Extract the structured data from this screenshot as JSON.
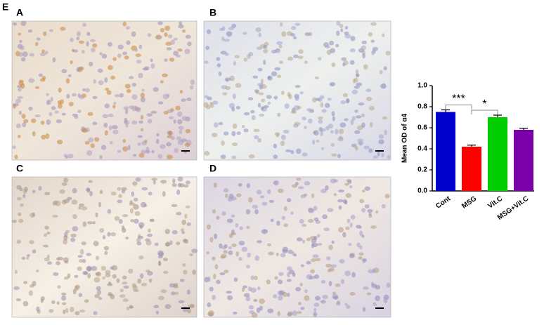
{
  "figure_label": "E",
  "panels": [
    {
      "label": "A"
    },
    {
      "label": "B"
    },
    {
      "label": "C"
    },
    {
      "label": "D"
    }
  ],
  "chart_data": {
    "type": "bar",
    "y_label": "Mean OD of α4",
    "categories": [
      "Cont",
      "MSG",
      "Vit.C",
      "MSG+Vit.C"
    ],
    "values": [
      0.75,
      0.42,
      0.7,
      0.58
    ],
    "errors": [
      0.02,
      0.015,
      0.02,
      0.015
    ],
    "colors": [
      "#0000cc",
      "#ff0000",
      "#00cc00",
      "#7a00a8"
    ],
    "ylim": [
      0,
      1.0
    ],
    "yticks": [
      {
        "value": 0,
        "label": "0.0"
      },
      {
        "value": 0.2,
        "label": "0.2"
      },
      {
        "value": 0.4,
        "label": "0.4"
      },
      {
        "value": 0.6,
        "label": "0.6"
      },
      {
        "value": 0.8,
        "label": "0.8"
      },
      {
        "value": 1.0,
        "label": "1.0"
      }
    ],
    "annotations": [
      {
        "text": "***",
        "between": [
          0,
          1
        ]
      },
      {
        "text": "*",
        "between": [
          1,
          2
        ]
      }
    ]
  }
}
